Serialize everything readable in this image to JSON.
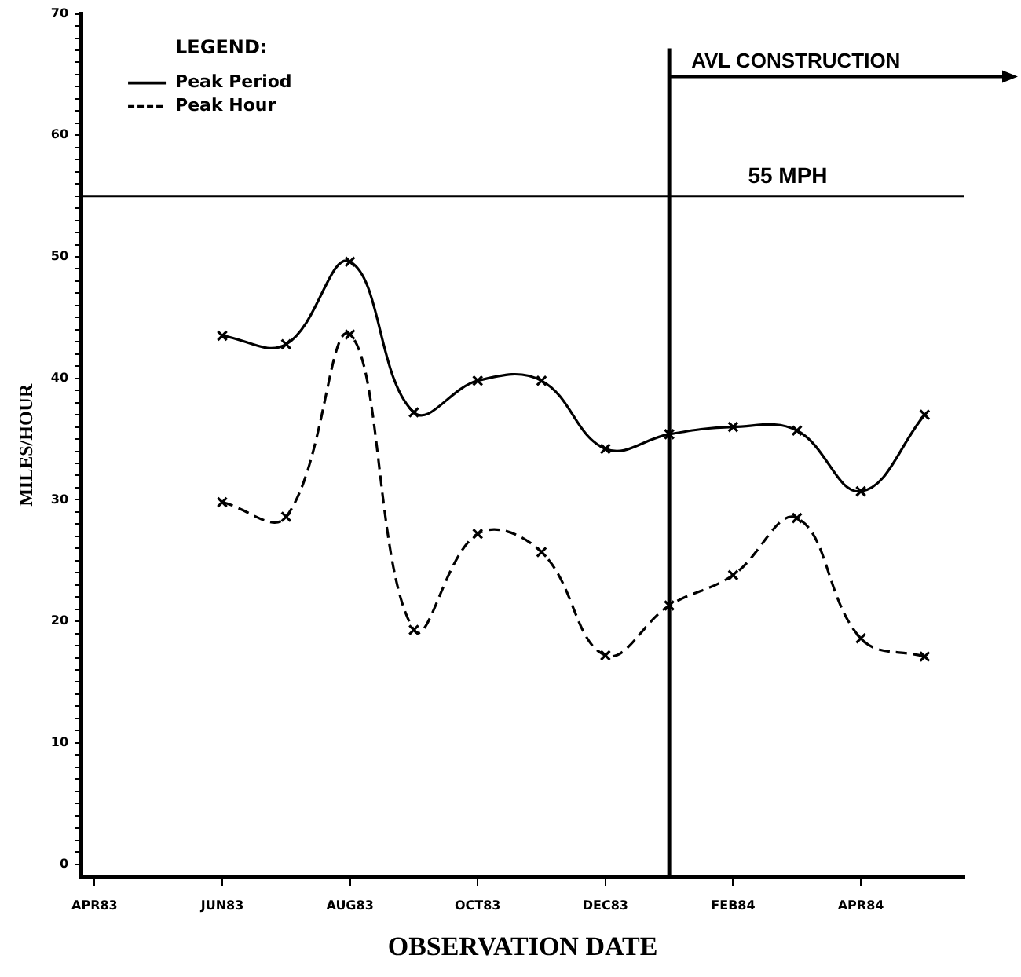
{
  "chart_data": {
    "type": "line",
    "xlabel": "OBSERVATION DATE",
    "ylabel": "MILES/HOUR",
    "legend_title": "LEGEND:",
    "x": [
      "1983-06",
      "1983-07",
      "1983-08",
      "1983-09",
      "1983-10",
      "1983-11",
      "1983-12",
      "1984-01",
      "1984-02",
      "1984-03",
      "1984-04",
      "1984-05"
    ],
    "series": [
      {
        "name": "Peak Period",
        "color": "#000000",
        "line_style": "solid",
        "values": [
          43.5,
          42.8,
          49.6,
          37.2,
          39.8,
          39.8,
          34.2,
          35.4,
          36.0,
          35.7,
          30.7,
          37.0
        ]
      },
      {
        "name": "Peak Hour",
        "color": "#000000",
        "line_style": "dashed",
        "values": [
          29.8,
          28.6,
          43.6,
          19.3,
          27.2,
          25.7,
          17.2,
          21.3,
          23.8,
          28.5,
          18.6,
          17.1
        ]
      }
    ],
    "xlim": [
      "1983-03-25",
      "1984-05-20"
    ],
    "xticks": [
      {
        "value": "1983-04",
        "label": "APR83"
      },
      {
        "value": "1983-06",
        "label": "JUN83"
      },
      {
        "value": "1983-08",
        "label": "AUG83"
      },
      {
        "value": "1983-10",
        "label": "OCT83"
      },
      {
        "value": "1983-12",
        "label": "DEC83"
      },
      {
        "value": "1984-02",
        "label": "FEB84"
      },
      {
        "value": "1984-04",
        "label": "APR84"
      }
    ],
    "ylim": [
      -1,
      70
    ],
    "yticks": [
      0,
      {
        "value": 1,
        "label": null
      },
      {
        "value": 2,
        "label": null
      },
      {
        "value": 3,
        "label": null
      },
      {
        "value": 4,
        "label": null
      },
      {
        "value": 5,
        "label": null
      },
      {
        "value": 6,
        "label": null
      },
      {
        "value": 7,
        "label": null
      },
      {
        "value": 8,
        "label": null
      },
      {
        "value": 9,
        "label": null
      },
      10,
      {
        "value": 11,
        "label": null
      },
      {
        "value": 12,
        "label": null
      },
      {
        "value": 13,
        "label": null
      },
      {
        "value": 14,
        "label": null
      },
      {
        "value": 15,
        "label": null
      },
      {
        "value": 16,
        "label": null
      },
      {
        "value": 17,
        "label": null
      },
      {
        "value": 18,
        "label": null
      },
      {
        "value": 19,
        "label": null
      },
      20,
      {
        "value": 21,
        "label": null
      },
      {
        "value": 22,
        "label": null
      },
      {
        "value": 23,
        "label": null
      },
      {
        "value": 24,
        "label": null
      },
      {
        "value": 25,
        "label": null
      },
      {
        "value": 26,
        "label": null
      },
      {
        "value": 27,
        "label": null
      },
      {
        "value": 28,
        "label": null
      },
      {
        "value": 29,
        "label": null
      },
      30,
      {
        "value": 31,
        "label": null
      },
      {
        "value": 32,
        "label": null
      },
      {
        "value": 33,
        "label": null
      },
      {
        "value": 34,
        "label": null
      },
      {
        "value": 35,
        "label": null
      },
      {
        "value": 36,
        "label": null
      },
      {
        "value": 37,
        "label": null
      },
      {
        "value": 38,
        "label": null
      },
      {
        "value": 39,
        "label": null
      },
      40,
      {
        "value": 41,
        "label": null
      },
      {
        "value": 42,
        "label": null
      },
      {
        "value": 43,
        "label": null
      },
      {
        "value": 44,
        "label": null
      },
      {
        "value": 45,
        "label": null
      },
      {
        "value": 46,
        "label": null
      },
      {
        "value": 47,
        "label": null
      },
      {
        "value": 48,
        "label": null
      },
      {
        "value": 49,
        "label": null
      },
      50,
      {
        "value": 51,
        "label": null
      },
      {
        "value": 52,
        "label": null
      },
      {
        "value": 53,
        "label": null
      },
      {
        "value": 54,
        "label": null
      },
      {
        "value": 55,
        "label": null
      },
      {
        "value": 56,
        "label": null
      },
      {
        "value": 57,
        "label": null
      },
      {
        "value": 58,
        "label": null
      },
      {
        "value": 59,
        "label": null
      },
      60,
      {
        "value": 61,
        "label": null
      },
      {
        "value": 62,
        "label": null
      },
      {
        "value": 63,
        "label": null
      },
      {
        "value": 64,
        "label": null
      },
      {
        "value": 65,
        "label": null
      },
      {
        "value": 66,
        "label": null
      },
      {
        "value": 67,
        "label": null
      },
      {
        "value": 68,
        "label": null
      },
      {
        "value": 69,
        "label": null
      },
      70
    ],
    "ref_lines": [
      {
        "axis": "y",
        "value": 55,
        "label": "55 MPH"
      },
      {
        "axis": "x",
        "value": "1984-01",
        "label": "AVL CONSTRUCTION"
      }
    ],
    "grid": false,
    "legend": "top left",
    "marker": "cross"
  }
}
